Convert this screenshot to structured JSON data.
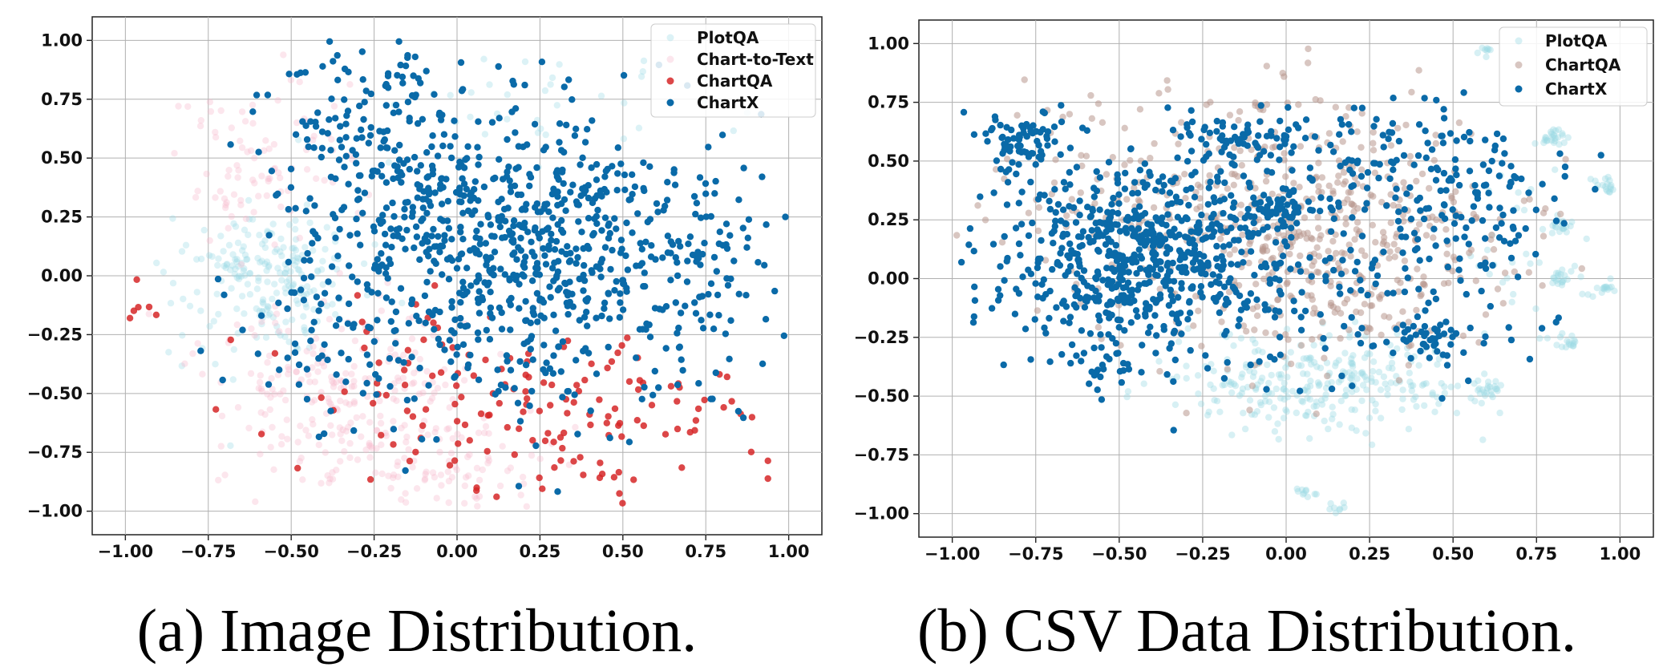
{
  "chart_data": [
    {
      "type": "scatter",
      "caption": "(a) Image Distribution.",
      "title": "",
      "xlabel": "",
      "ylabel": "",
      "xlim": [
        -1.1,
        1.1
      ],
      "ylim": [
        -1.1,
        1.1
      ],
      "xticks": [
        -1.0,
        -0.75,
        -0.5,
        -0.25,
        0.0,
        0.25,
        0.5,
        0.75,
        1.0
      ],
      "yticks": [
        1.0,
        0.75,
        0.5,
        0.25,
        0.0,
        -0.25,
        -0.5,
        -0.75,
        -1.0
      ],
      "xtick_labels": [
        "−1.00",
        "−0.75",
        "−0.50",
        "−0.25",
        "0.00",
        "0.25",
        "0.50",
        "0.75",
        "1.00"
      ],
      "ytick_labels": [
        "1.00",
        "0.75",
        "0.50",
        "0.25",
        "0.00",
        "−0.25",
        "−0.50",
        "−0.75",
        "−1.00"
      ],
      "grid": true,
      "legend_position": "top-right",
      "series": [
        {
          "name": "PlotQA",
          "color": "#9ad9e4",
          "opacity": 0.35,
          "clusters": [
            {
              "cx": -0.55,
              "cy": 0.0,
              "sx": 0.12,
              "sy": 0.13,
              "n": 190
            },
            {
              "cx": 0.35,
              "cy": 0.75,
              "sx": 0.3,
              "sy": 0.12,
              "n": 40
            },
            {
              "cx": -0.72,
              "cy": -0.15,
              "sx": 0.1,
              "sy": 0.25,
              "n": 25
            }
          ]
        },
        {
          "name": "Chart-to-Text",
          "color": "#f7b6cc",
          "opacity": 0.35,
          "clusters": [
            {
              "cx": -0.3,
              "cy": -0.55,
              "sx": 0.22,
              "sy": 0.2,
              "n": 260
            },
            {
              "cx": -0.6,
              "cy": 0.45,
              "sx": 0.15,
              "sy": 0.2,
              "n": 90
            },
            {
              "cx": 0.0,
              "cy": -0.85,
              "sx": 0.15,
              "sy": 0.1,
              "n": 60
            }
          ]
        },
        {
          "name": "ChartQA",
          "color": "#d62728",
          "opacity": 0.85,
          "clusters": [
            {
              "cx": 0.4,
              "cy": -0.6,
              "sx": 0.25,
              "sy": 0.18,
              "n": 110
            },
            {
              "cx": -0.2,
              "cy": -0.5,
              "sx": 0.2,
              "sy": 0.2,
              "n": 50
            },
            {
              "cx": -0.95,
              "cy": -0.1,
              "sx": 0.03,
              "sy": 0.05,
              "n": 6
            }
          ]
        },
        {
          "name": "ChartX",
          "color": "#0a6aa8",
          "opacity": 1.0,
          "clusters": [
            {
              "cx": 0.2,
              "cy": 0.1,
              "sx": 0.3,
              "sy": 0.3,
              "n": 720
            },
            {
              "cx": -0.25,
              "cy": 0.55,
              "sx": 0.2,
              "sy": 0.25,
              "n": 180
            },
            {
              "cx": 0.75,
              "cy": 0.0,
              "sx": 0.13,
              "sy": 0.25,
              "n": 80
            },
            {
              "cx": -0.4,
              "cy": -0.3,
              "sx": 0.15,
              "sy": 0.2,
              "n": 60
            }
          ]
        }
      ]
    },
    {
      "type": "scatter",
      "caption": "(b) CSV Data Distribution.",
      "title": "",
      "xlabel": "",
      "ylabel": "",
      "xlim": [
        -1.1,
        1.1
      ],
      "ylim": [
        -1.1,
        1.1
      ],
      "xticks": [
        -1.0,
        -0.75,
        -0.5,
        -0.25,
        0.0,
        0.25,
        0.5,
        0.75,
        1.0
      ],
      "yticks": [
        1.0,
        0.75,
        0.5,
        0.25,
        0.0,
        -0.25,
        -0.5,
        -0.75,
        -1.0
      ],
      "xtick_labels": [
        "−1.00",
        "−0.75",
        "−0.50",
        "−0.25",
        "0.00",
        "0.25",
        "0.50",
        "0.75",
        "1.00"
      ],
      "ytick_labels": [
        "1.00",
        "0.75",
        "0.50",
        "0.25",
        "0.00",
        "−0.25",
        "−0.50",
        "−0.75",
        "−1.00"
      ],
      "grid": true,
      "legend_position": "top-right",
      "series": [
        {
          "name": "PlotQA",
          "color": "#9ad9e4",
          "opacity": 0.4,
          "clusters": [
            {
              "cx": 0.1,
              "cy": -0.45,
              "sx": 0.22,
              "sy": 0.1,
              "n": 280
            },
            {
              "cx": 0.8,
              "cy": 0.6,
              "sx": 0.02,
              "sy": 0.02,
              "n": 25
            },
            {
              "cx": 0.95,
              "cy": 0.4,
              "sx": 0.02,
              "sy": 0.02,
              "n": 18
            },
            {
              "cx": 0.82,
              "cy": 0.22,
              "sx": 0.02,
              "sy": 0.02,
              "n": 18
            },
            {
              "cx": 0.82,
              "cy": 0.0,
              "sx": 0.02,
              "sy": 0.02,
              "n": 18
            },
            {
              "cx": 0.95,
              "cy": -0.05,
              "sx": 0.02,
              "sy": 0.02,
              "n": 15
            },
            {
              "cx": 0.85,
              "cy": -0.28,
              "sx": 0.02,
              "sy": 0.02,
              "n": 15
            },
            {
              "cx": 0.6,
              "cy": -0.48,
              "sx": 0.025,
              "sy": 0.02,
              "n": 25
            },
            {
              "cx": 0.6,
              "cy": 0.98,
              "sx": 0.015,
              "sy": 0.015,
              "n": 10
            },
            {
              "cx": 0.05,
              "cy": -0.91,
              "sx": 0.02,
              "sy": 0.01,
              "n": 10
            },
            {
              "cx": 0.15,
              "cy": -0.98,
              "sx": 0.015,
              "sy": 0.01,
              "n": 8
            },
            {
              "cx": 0.7,
              "cy": 0.1,
              "sx": 0.08,
              "sy": 0.2,
              "n": 30
            }
          ]
        },
        {
          "name": "ChartQA",
          "color": "#b8978e",
          "opacity": 0.55,
          "clusters": [
            {
              "cx": 0.1,
              "cy": 0.2,
              "sx": 0.28,
              "sy": 0.28,
              "n": 520
            },
            {
              "cx": -0.5,
              "cy": 0.35,
              "sx": 0.25,
              "sy": 0.25,
              "n": 100
            }
          ]
        },
        {
          "name": "ChartX",
          "color": "#0a6aa8",
          "opacity": 1.0,
          "clusters": [
            {
              "cx": -0.45,
              "cy": 0.1,
              "sx": 0.22,
              "sy": 0.2,
              "n": 620
            },
            {
              "cx": -0.1,
              "cy": 0.6,
              "sx": 0.1,
              "sy": 0.06,
              "n": 80
            },
            {
              "cx": -0.78,
              "cy": 0.58,
              "sx": 0.06,
              "sy": 0.05,
              "n": 70
            },
            {
              "cx": 0.35,
              "cy": 0.45,
              "sx": 0.2,
              "sy": 0.15,
              "n": 150
            },
            {
              "cx": -0.03,
              "cy": 0.28,
              "sx": 0.05,
              "sy": 0.04,
              "n": 60
            },
            {
              "cx": 0.15,
              "cy": -0.05,
              "sx": 0.3,
              "sy": 0.2,
              "n": 150
            },
            {
              "cx": 0.42,
              "cy": -0.25,
              "sx": 0.05,
              "sy": 0.05,
              "n": 40
            },
            {
              "cx": -0.55,
              "cy": -0.4,
              "sx": 0.05,
              "sy": 0.05,
              "n": 25
            },
            {
              "cx": 0.6,
              "cy": 0.3,
              "sx": 0.1,
              "sy": 0.15,
              "n": 40
            }
          ]
        }
      ]
    }
  ]
}
